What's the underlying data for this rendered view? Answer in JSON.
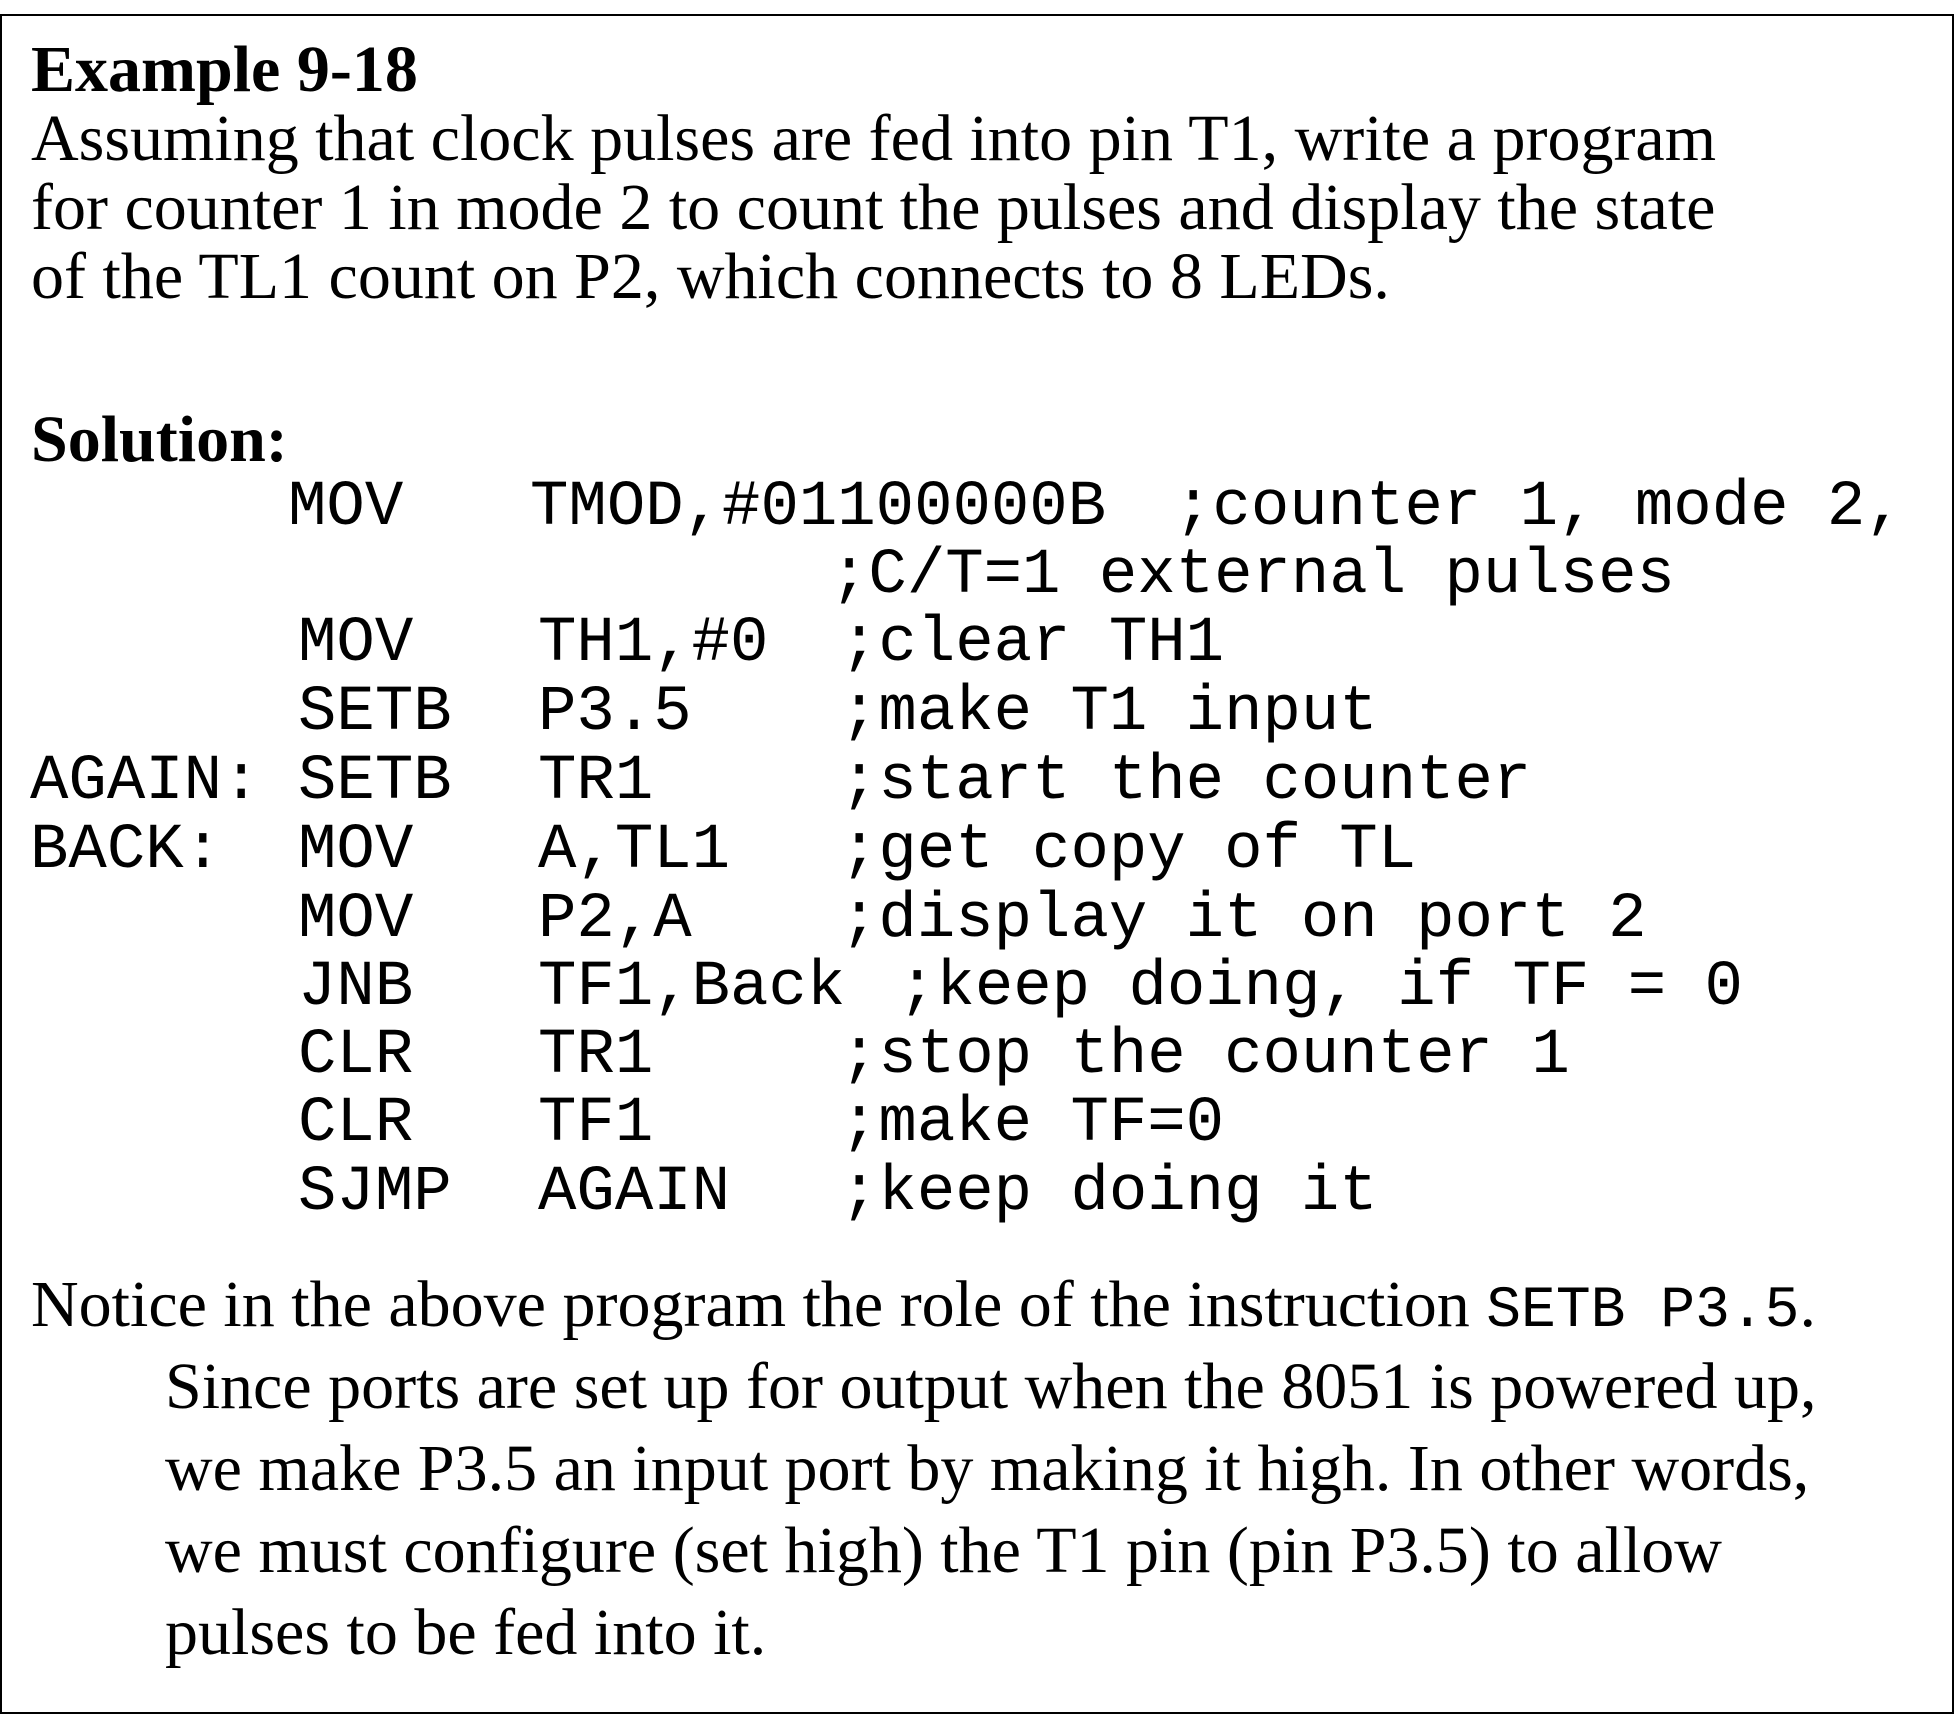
{
  "example": {
    "title": "Example 9-18",
    "problem_lines": [
      "Assuming that clock pulses are fed into pin T1, write a program",
      "for counter 1 in mode 2 to count the pulses and display the state",
      "of the TL1 count on P2, which connects to 8 LEDs."
    ]
  },
  "solution": {
    "label": "Solution:",
    "code": [
      {
        "label": "",
        "op": "MOV",
        "operand": "TMOD,#01100000B",
        "comment": ";counter 1, mode 2,"
      },
      {
        "label": "",
        "op": "",
        "operand": "",
        "comment": ";C/T=1 external pulses"
      },
      {
        "label": "",
        "op": "MOV",
        "operand": "TH1,#0",
        "comment": ";clear TH1"
      },
      {
        "label": "",
        "op": "SETB",
        "operand": "P3.5",
        "comment": ";make T1 input"
      },
      {
        "label": "AGAIN:",
        "op": "SETB",
        "operand": "TR1",
        "comment": ";start the counter"
      },
      {
        "label": "BACK:",
        "op": "MOV",
        "operand": "A,TL1",
        "comment": ";get copy of TL"
      },
      {
        "label": "",
        "op": "MOV",
        "operand": "P2,A",
        "comment": ";display it on port 2"
      },
      {
        "label": "",
        "op": "JNB",
        "operand": "TF1,Back",
        "comment": ";keep doing, if TF = 0"
      },
      {
        "label": "",
        "op": "CLR",
        "operand": "TR1",
        "comment": ";stop the counter 1"
      },
      {
        "label": "",
        "op": "CLR",
        "operand": "TF1",
        "comment": ";make TF=0"
      },
      {
        "label": "",
        "op": "SJMP",
        "operand": "AGAIN",
        "comment": ";keep doing it"
      }
    ]
  },
  "notice": {
    "text": "Notice in the above program the role of the instruction ",
    "instruction": "SETB P3.5",
    "after": ".",
    "explanation_lines": [
      "Since ports are set up for output when the 8051 is powered up,",
      "we make P3.5 an input port by making it high. In other words,",
      "we must configure (set high) the T1 pin (pin P3.5) to allow",
      "pulses to be fed into it."
    ]
  }
}
